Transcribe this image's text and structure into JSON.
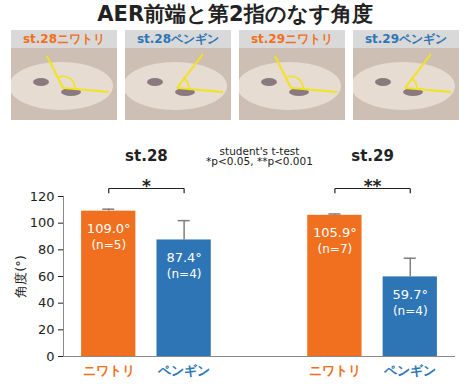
{
  "chart_data": {
    "type": "bar",
    "title": "AER前端と第2指のなす角度",
    "photos": [
      {
        "label": "st.28ニワトリ",
        "color": "#f07020"
      },
      {
        "label": "st.28ペンギン",
        "color": "#2e75b6"
      },
      {
        "label": "st.29ニワトリ",
        "color": "#f07020"
      },
      {
        "label": "st.29ペンギン",
        "color": "#2e75b6"
      }
    ],
    "categories": [
      "ニワトリ",
      "ペンギン",
      "ニワトリ",
      "ペンギン"
    ],
    "groups": [
      "st.28",
      "st.28",
      "st.29",
      "st.29"
    ],
    "values": [
      109.0,
      87.4,
      105.9,
      59.7
    ],
    "value_labels": [
      "109.0°",
      "87.4°",
      "105.9°",
      "59.7°"
    ],
    "n_labels": [
      "(n=5)",
      "(n=4)",
      "(n=7)",
      "(n=4)"
    ],
    "errors": [
      1.5,
      14.5,
      1.0,
      14.0
    ],
    "colors": [
      "#f07020",
      "#2e75b6",
      "#f07020",
      "#2e75b6"
    ],
    "significance": [
      {
        "group": "st.28",
        "label": "*"
      },
      {
        "group": "st.29",
        "label": "**"
      }
    ],
    "annotations": [
      "student's t-test",
      "*p<0.05, **p<0.001"
    ],
    "y_label": "角度(°)",
    "ylim": [
      0,
      120
    ],
    "yticks": [
      0,
      20,
      40,
      60,
      80,
      100,
      120
    ],
    "data_labels": true
  }
}
